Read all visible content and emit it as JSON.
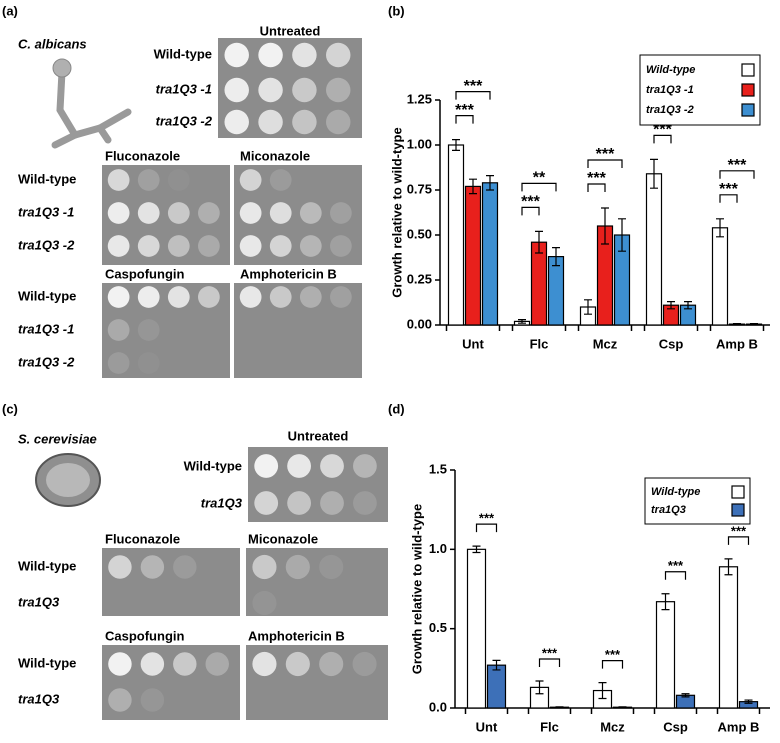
{
  "panels": {
    "a": "(a)",
    "b": "(b)",
    "c": "(c)",
    "d": "(d)"
  },
  "candida": {
    "species": "C. albicans",
    "conditions": [
      "Untreated",
      "Fluconazole",
      "Miconazole",
      "Caspofungin",
      "Amphotericin B"
    ],
    "strains": [
      "Wild-type",
      "tra1Q3 -1",
      "tra1Q3 -2"
    ]
  },
  "cerevisiae": {
    "species": "S. cerevisiae",
    "conditions": [
      "Untreated",
      "Fluconazole",
      "Miconazole",
      "Caspofungin",
      "Amphotericin B"
    ],
    "strains": [
      "Wild-type",
      "tra1Q3"
    ]
  },
  "chart_data": [
    {
      "type": "bar",
      "y_label": "Growth relative to wild-type",
      "categories": [
        "Unt",
        "Flc",
        "Mcz",
        "Csp",
        "Amp B"
      ],
      "series": [
        {
          "name": "Wild-type",
          "color": "#ffffff",
          "values": [
            1.0,
            0.02,
            0.1,
            0.84,
            0.54
          ],
          "errors": [
            0.03,
            0.01,
            0.04,
            0.08,
            0.05
          ]
        },
        {
          "name": "tra1Q3 -1",
          "color": "#e8201c",
          "values": [
            0.77,
            0.46,
            0.55,
            0.11,
            0.005
          ],
          "errors": [
            0.04,
            0.06,
            0.1,
            0.02,
            0.003
          ]
        },
        {
          "name": "tra1Q3 -2",
          "color": "#3d8fd1",
          "values": [
            0.79,
            0.38,
            0.5,
            0.11,
            0.005
          ],
          "errors": [
            0.04,
            0.05,
            0.09,
            0.02,
            0.003
          ]
        }
      ],
      "ylim": [
        0,
        1.25
      ],
      "yticks": [
        {
          "value": 0,
          "label": "0.00"
        },
        {
          "value": 0.25,
          "label": "0.25"
        },
        {
          "value": 0.5,
          "label": "0.50"
        },
        {
          "value": 0.75,
          "label": "0.75"
        },
        {
          "value": 1,
          "label": "1.00"
        },
        {
          "value": 1.25,
          "label": "1.25"
        }
      ],
      "legend": "upper right",
      "annotations": [
        {
          "text": "***",
          "category": 0,
          "series": 1
        },
        {
          "text": "***",
          "category": 0,
          "series": 2
        },
        {
          "text": "***",
          "category": 1,
          "series": 1
        },
        {
          "text": "**",
          "category": 1,
          "series": 2
        },
        {
          "text": "***",
          "category": 2,
          "series": 1
        },
        {
          "text": "***",
          "category": 2,
          "series": 2
        },
        {
          "text": "***",
          "category": 3,
          "series": 1
        },
        {
          "text": "***",
          "category": 3,
          "series": 2
        },
        {
          "text": "***",
          "category": 4,
          "series": 1
        },
        {
          "text": "***",
          "category": 4,
          "series": 2
        }
      ]
    },
    {
      "type": "bar",
      "y_label": "Growth relative to wild-type",
      "categories": [
        "Unt",
        "Flc",
        "Mcz",
        "Csp",
        "Amp B"
      ],
      "series": [
        {
          "name": "Wild-type",
          "color": "#ffffff",
          "values": [
            1.0,
            0.13,
            0.11,
            0.67,
            0.89
          ],
          "errors": [
            0.02,
            0.04,
            0.05,
            0.05,
            0.05
          ]
        },
        {
          "name": "tra1Q3",
          "color": "#3d70b8",
          "values": [
            0.27,
            0.005,
            0.005,
            0.08,
            0.04
          ],
          "errors": [
            0.03,
            0.002,
            0.002,
            0.01,
            0.01
          ]
        }
      ],
      "ylim": [
        0,
        1.5
      ],
      "yticks": [
        {
          "value": 0,
          "label": "0.0"
        },
        {
          "value": 0.5,
          "label": "0.5"
        },
        {
          "value": 1,
          "label": "1.0"
        },
        {
          "value": 1.5,
          "label": "1.5"
        }
      ],
      "legend": "upper right",
      "annotations": [
        {
          "text": "***",
          "category": 0,
          "series": 1
        },
        {
          "text": "***",
          "category": 1,
          "series": 1
        },
        {
          "text": "***",
          "category": 2,
          "series": 1
        },
        {
          "text": "***",
          "category": 3,
          "series": 1
        },
        {
          "text": "***",
          "category": 4,
          "series": 1
        }
      ]
    }
  ]
}
